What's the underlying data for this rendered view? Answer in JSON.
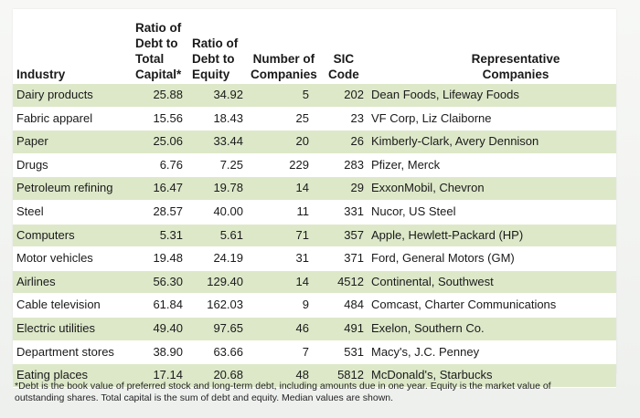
{
  "table": {
    "headers": {
      "industry": "Industry",
      "debt_to_capital": [
        "Ratio of",
        "Debt to",
        "Total",
        "Capital*"
      ],
      "debt_to_equity": [
        "Ratio of",
        "Debt to",
        "Equity"
      ],
      "num_companies": [
        "Number of",
        "Companies"
      ],
      "sic": [
        "SIC",
        "Code"
      ],
      "representative": [
        "Representative",
        "Companies"
      ]
    },
    "rows": [
      {
        "industry": "Dairy products",
        "debt_to_capital": "25.88",
        "debt_to_equity": "34.92",
        "num_companies": "5",
        "sic": "202",
        "representative": "Dean Foods, Lifeway Foods"
      },
      {
        "industry": "Fabric apparel",
        "debt_to_capital": "15.56",
        "debt_to_equity": "18.43",
        "num_companies": "25",
        "sic": "23",
        "representative": "VF Corp, Liz Claiborne"
      },
      {
        "industry": "Paper",
        "debt_to_capital": "25.06",
        "debt_to_equity": "33.44",
        "num_companies": "20",
        "sic": "26",
        "representative": "Kimberly-Clark, Avery Dennison"
      },
      {
        "industry": "Drugs",
        "debt_to_capital": "6.76",
        "debt_to_equity": "7.25",
        "num_companies": "229",
        "sic": "283",
        "representative": "Pfizer, Merck"
      },
      {
        "industry": "Petroleum refining",
        "debt_to_capital": "16.47",
        "debt_to_equity": "19.78",
        "num_companies": "14",
        "sic": "29",
        "representative": "ExxonMobil, Chevron"
      },
      {
        "industry": "Steel",
        "debt_to_capital": "28.57",
        "debt_to_equity": "40.00",
        "num_companies": "11",
        "sic": "331",
        "representative": "Nucor, US Steel"
      },
      {
        "industry": "Computers",
        "debt_to_capital": "5.31",
        "debt_to_equity": "5.61",
        "num_companies": "71",
        "sic": "357",
        "representative": "Apple, Hewlett-Packard (HP)"
      },
      {
        "industry": "Motor vehicles",
        "debt_to_capital": "19.48",
        "debt_to_equity": "24.19",
        "num_companies": "31",
        "sic": "371",
        "representative": "Ford, General Motors (GM)"
      },
      {
        "industry": "Airlines",
        "debt_to_capital": "56.30",
        "debt_to_equity": "129.40",
        "num_companies": "14",
        "sic": "4512",
        "representative": "Continental, Southwest"
      },
      {
        "industry": "Cable television",
        "debt_to_capital": "61.84",
        "debt_to_equity": "162.03",
        "num_companies": "9",
        "sic": "484",
        "representative": "Comcast, Charter Communications"
      },
      {
        "industry": "Electric utilities",
        "debt_to_capital": "49.40",
        "debt_to_equity": "97.65",
        "num_companies": "46",
        "sic": "491",
        "representative": "Exelon, Southern Co."
      },
      {
        "industry": "Department stores",
        "debt_to_capital": "38.90",
        "debt_to_equity": "63.66",
        "num_companies": "7",
        "sic": "531",
        "representative": "Macy's, J.C. Penney"
      },
      {
        "industry": "Eating places",
        "debt_to_capital": "17.14",
        "debt_to_equity": "20.68",
        "num_companies": "48",
        "sic": "5812",
        "representative": "McDonald's, Starbucks"
      }
    ],
    "row_colors": {
      "shaded": "#dde8c9",
      "plain": "#ffffff"
    }
  },
  "footnote": "*Debt is the book value of preferred stock and long-term debt, including amounts due in one year. Equity is the market value of outstanding shares. Total capital is the sum of debt and equity. Median values are shown."
}
